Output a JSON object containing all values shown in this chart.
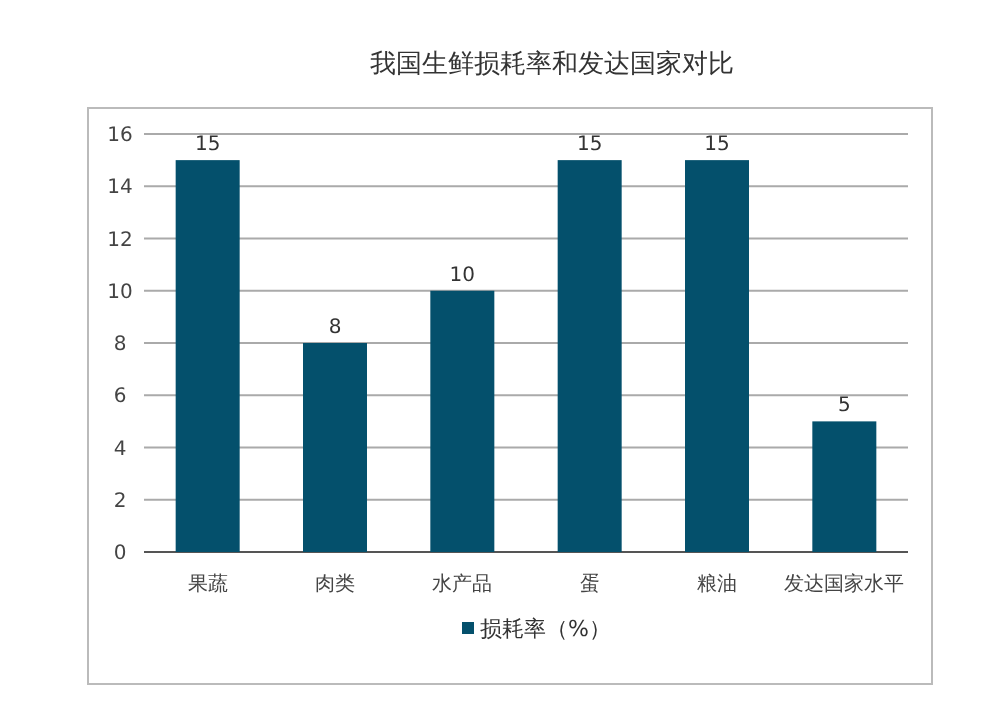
{
  "chart_data": {
    "type": "bar",
    "title": "我国生鲜损耗率和发达国家对比",
    "categories": [
      "果蔬",
      "肉类",
      "水产品",
      "蛋",
      "粮油",
      "发达国家水平"
    ],
    "series": [
      {
        "name": "损耗率（%）",
        "color": "#04506c",
        "values": [
          15,
          8,
          10,
          15,
          15,
          5
        ]
      }
    ],
    "ylim": [
      0,
      16
    ],
    "yticks": [
      0,
      2,
      4,
      6,
      8,
      10,
      12,
      14,
      16
    ],
    "grid": "y",
    "legend": "bottom",
    "data_labels": true
  }
}
